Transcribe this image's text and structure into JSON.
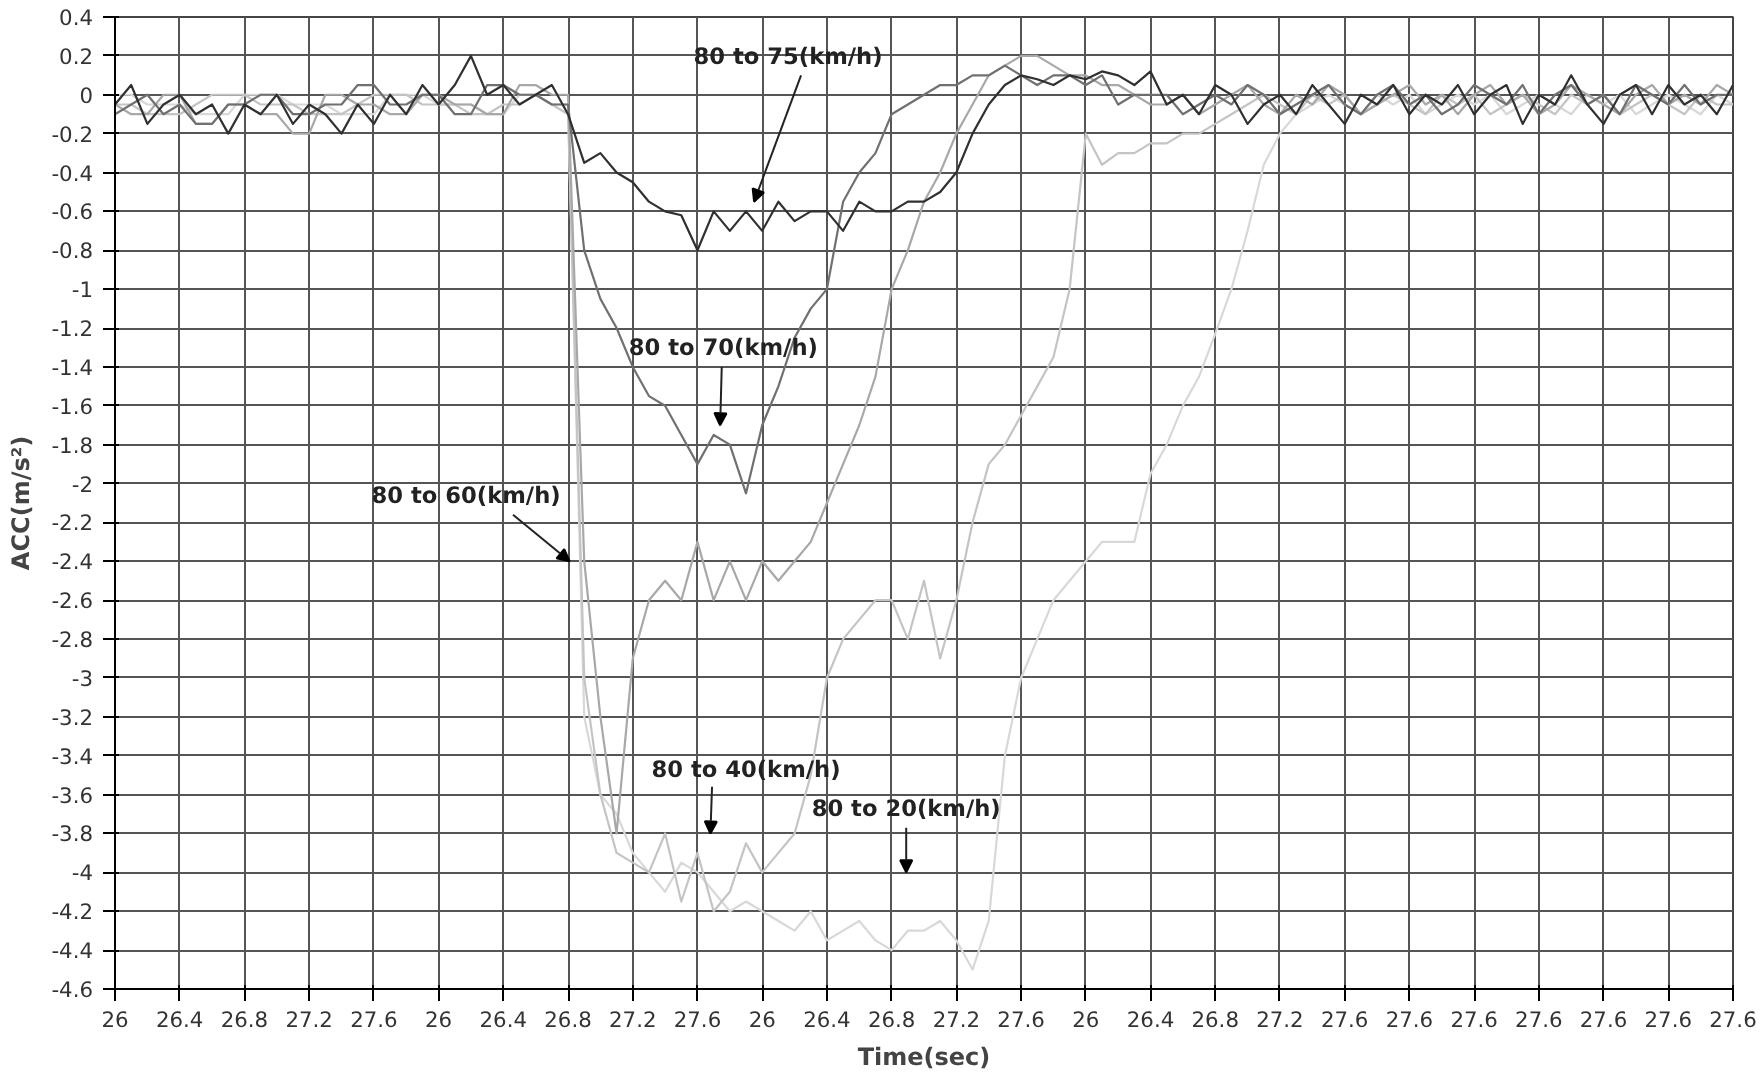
{
  "chart_data": {
    "type": "line",
    "xlabel": "Time(sec)",
    "ylabel": "ACC(m/s²)",
    "categories": [
      "26",
      null,
      null,
      null,
      "26.4",
      null,
      null,
      null,
      "26.8",
      null,
      null,
      null,
      "27.2",
      null,
      null,
      null,
      "27.6",
      null,
      null,
      null,
      "26",
      null,
      null,
      null,
      "26.4",
      null,
      null,
      null,
      "26.8",
      null,
      null,
      null,
      "27.2",
      null,
      null,
      null,
      "27.6",
      null,
      null,
      null,
      "26",
      null,
      null,
      null,
      "26.4",
      null,
      null,
      null,
      "26.8",
      null,
      null,
      null,
      "27.2",
      null,
      null,
      null,
      "27.6",
      null,
      null,
      null,
      "26",
      null,
      null,
      null,
      "26.4",
      null,
      null,
      null,
      "26.8",
      null,
      null,
      null,
      "27.2",
      null,
      null,
      null,
      "27.6",
      null,
      null,
      null,
      "27.6",
      null,
      null,
      null,
      "27.6",
      null,
      null,
      null,
      "27.6",
      null,
      null,
      null,
      "27.6",
      null,
      null,
      null,
      "27.6",
      null,
      null,
      null,
      "27.6"
    ],
    "ylim": [
      -4.6,
      0.4
    ],
    "yticks": [
      0.4,
      0.2,
      0,
      -0.2,
      -0.4,
      -0.6,
      -0.8,
      -1,
      -1.2,
      -1.4,
      -1.6,
      -1.8,
      -2,
      -2.2,
      -2.4,
      -2.6,
      -2.8,
      -3,
      -3.2,
      -3.4,
      -3.6,
      -3.8,
      -4,
      -4.2,
      -4.4,
      -4.6
    ],
    "grid": true,
    "line_style": "solid",
    "series": [
      {
        "color": "#d8d8d8",
        "values": [
          0.0,
          0.0,
          -0.05,
          -0.05,
          -0.05,
          -0.1,
          -0.1,
          -0.1,
          0.0,
          0.0,
          0.0,
          -0.05,
          -0.05,
          -0.05,
          -0.1,
          -0.1,
          -0.1,
          0.0,
          0.0,
          0.0,
          -0.05,
          -0.05,
          -0.05,
          -0.1,
          -0.1,
          0.0,
          0.0,
          -0.05,
          -0.05,
          -3.2,
          -3.6,
          -3.7,
          -3.9,
          -4.0,
          -4.1,
          -3.95,
          -4.0,
          -4.1,
          -4.2,
          -4.15,
          -4.2,
          -4.25,
          -4.3,
          -4.2,
          -4.35,
          -4.3,
          -4.25,
          -4.35,
          -4.4,
          -4.3,
          -4.3,
          -4.25,
          -4.35,
          -4.5,
          -4.25,
          -3.4,
          -3.0,
          -2.8,
          -2.6,
          -2.5,
          -2.4,
          -2.3,
          -2.3,
          -2.3,
          -1.95,
          -1.8,
          -1.6,
          -1.45,
          -1.23,
          -1.0,
          -0.7,
          -0.36,
          -0.2,
          -0.1,
          -0.05,
          0.0,
          -0.05,
          -0.1,
          0.0,
          -0.05,
          0.0,
          -0.1,
          -0.05,
          0.0,
          -0.05,
          0.0,
          -0.1,
          -0.05,
          0.0,
          -0.05,
          -0.1,
          0.0,
          -0.05,
          0.0,
          -0.1,
          -0.05,
          0.0,
          -0.05,
          -0.1,
          0.0,
          -0.05
        ]
      },
      {
        "color": "#c4c4c4",
        "values": [
          -0.05,
          -0.05,
          -0.1,
          -0.1,
          -0.1,
          -0.05,
          0.0,
          0.0,
          0.0,
          -0.05,
          -0.05,
          -0.05,
          -0.1,
          -0.1,
          -0.1,
          -0.05,
          0.0,
          0.0,
          0.0,
          -0.05,
          -0.05,
          -0.05,
          -0.1,
          -0.1,
          -0.05,
          -0.05,
          0.0,
          -0.05,
          -0.1,
          -3.0,
          -3.6,
          -3.9,
          -3.95,
          -4.0,
          -3.8,
          -4.15,
          -3.9,
          -4.2,
          -4.1,
          -3.85,
          -4.0,
          -3.9,
          -3.8,
          -3.5,
          -3.0,
          -2.8,
          -2.7,
          -2.6,
          -2.6,
          -2.8,
          -2.5,
          -2.9,
          -2.6,
          -2.2,
          -1.9,
          -1.8,
          -1.65,
          -1.5,
          -1.35,
          -1.0,
          -0.2,
          -0.36,
          -0.3,
          -0.3,
          -0.25,
          -0.25,
          -0.2,
          -0.2,
          -0.15,
          -0.1,
          -0.05,
          0.0,
          -0.05,
          -0.1,
          0.0,
          -0.05,
          0.0,
          -0.1,
          -0.05,
          0.0,
          -0.05,
          -0.1,
          0.0,
          -0.05,
          0.0,
          -0.1,
          -0.05,
          0.0,
          -0.05,
          -0.1,
          0.0,
          -0.05,
          0.0,
          -0.1,
          -0.05,
          0.0,
          -0.05,
          -0.1,
          0.0,
          -0.05,
          -0.05
        ]
      },
      {
        "color": "#a8a8a8",
        "values": [
          -0.05,
          -0.1,
          -0.1,
          0.0,
          0.0,
          -0.15,
          -0.15,
          -0.05,
          -0.05,
          -0.1,
          -0.1,
          -0.2,
          -0.2,
          0.0,
          0.0,
          -0.05,
          -0.05,
          -0.1,
          -0.1,
          0.0,
          0.0,
          -0.05,
          -0.05,
          -0.1,
          -0.1,
          0.05,
          0.05,
          0.0,
          0.0,
          -2.4,
          -3.2,
          -3.8,
          -2.9,
          -2.6,
          -2.5,
          -2.6,
          -2.3,
          -2.6,
          -2.4,
          -2.6,
          -2.4,
          -2.5,
          -2.4,
          -2.3,
          -2.1,
          -1.9,
          -1.7,
          -1.45,
          -1.0,
          -0.8,
          -0.55,
          -0.4,
          -0.2,
          -0.05,
          0.1,
          0.15,
          0.2,
          0.2,
          0.15,
          0.1,
          0.1,
          0.05,
          0.05,
          0.0,
          -0.05,
          -0.05,
          0.0,
          -0.1,
          -0.05,
          0.0,
          0.05,
          -0.05,
          -0.1,
          0.0,
          -0.05,
          0.05,
          0.0,
          -0.1,
          -0.05,
          0.0,
          0.05,
          -0.05,
          0.0,
          -0.1,
          0.0,
          0.05,
          -0.05,
          0.0,
          -0.1,
          -0.05,
          0.05,
          0.0,
          -0.05,
          -0.1,
          0.0,
          0.05,
          -0.05,
          0.0,
          -0.05,
          0.05,
          0.0
        ]
      },
      {
        "color": "#707070",
        "values": [
          -0.1,
          -0.05,
          0.0,
          -0.1,
          -0.05,
          -0.15,
          -0.15,
          -0.05,
          -0.05,
          0.0,
          0.0,
          -0.1,
          -0.1,
          -0.05,
          -0.05,
          0.05,
          0.05,
          -0.05,
          -0.05,
          0.0,
          0.0,
          -0.1,
          -0.1,
          0.05,
          0.05,
          0.0,
          0.0,
          -0.05,
          -0.05,
          -0.8,
          -1.05,
          -1.2,
          -1.4,
          -1.55,
          -1.6,
          -1.75,
          -1.9,
          -1.75,
          -1.8,
          -2.05,
          -1.7,
          -1.5,
          -1.25,
          -1.1,
          -1.0,
          -0.55,
          -0.4,
          -0.3,
          -0.1,
          -0.05,
          0.0,
          0.05,
          0.05,
          0.1,
          0.1,
          0.15,
          0.1,
          0.05,
          0.1,
          0.1,
          0.05,
          0.1,
          -0.05,
          0.0,
          0.0,
          0.0,
          -0.1,
          -0.05,
          0.0,
          -0.05,
          0.05,
          0.0,
          -0.1,
          -0.05,
          0.0,
          0.05,
          -0.05,
          -0.1,
          0.0,
          0.05,
          -0.05,
          0.0,
          -0.1,
          -0.05,
          0.05,
          0.0,
          -0.05,
          0.05,
          -0.1,
          0.0,
          0.05,
          -0.05,
          0.0,
          -0.1,
          0.05,
          0.0,
          -0.05,
          0.05,
          -0.05,
          0.0,
          0.0
        ]
      },
      {
        "color": "#303030",
        "values": [
          -0.05,
          0.05,
          -0.15,
          -0.05,
          0.0,
          -0.1,
          -0.05,
          -0.2,
          -0.05,
          -0.1,
          0.0,
          -0.15,
          -0.05,
          -0.1,
          -0.2,
          -0.05,
          -0.15,
          0.0,
          -0.1,
          0.05,
          -0.05,
          0.05,
          0.2,
          0.0,
          0.05,
          -0.05,
          0.0,
          0.05,
          -0.1,
          -0.35,
          -0.3,
          -0.4,
          -0.45,
          -0.55,
          -0.6,
          -0.62,
          -0.8,
          -0.6,
          -0.7,
          -0.6,
          -0.7,
          -0.55,
          -0.65,
          -0.6,
          -0.6,
          -0.7,
          -0.55,
          -0.6,
          -0.6,
          -0.55,
          -0.55,
          -0.5,
          -0.4,
          -0.2,
          -0.05,
          0.05,
          0.1,
          0.08,
          0.05,
          0.1,
          0.08,
          0.12,
          0.1,
          0.05,
          0.12,
          -0.05,
          0.0,
          -0.1,
          0.05,
          0.0,
          -0.15,
          -0.05,
          0.0,
          -0.1,
          0.05,
          -0.05,
          -0.15,
          0.0,
          -0.05,
          0.05,
          -0.1,
          0.0,
          -0.05,
          0.05,
          -0.1,
          0.0,
          0.05,
          -0.15,
          0.0,
          -0.05,
          0.1,
          -0.05,
          -0.15,
          0.0,
          0.05,
          -0.1,
          0.05,
          -0.05,
          0.0,
          -0.1,
          0.05
        ]
      }
    ],
    "annotations": [
      "80 to 75(km/h)",
      "80 to 70(km/h)",
      "80 to 60(km/h)",
      "80 to 40(km/h)",
      "80 to 20(km/h)"
    ]
  }
}
